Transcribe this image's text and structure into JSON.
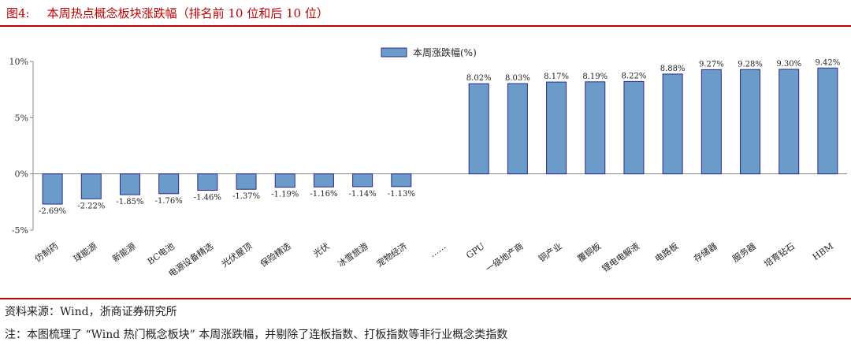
{
  "title": {
    "fig_label": "图4:",
    "text": "本周热点概念板块涨跌幅（排名前 10 位和后 10 位）"
  },
  "source": "资料来源：Wind，浙商证券研究所",
  "note": "注：本图梳理了 “Wind 热门概念板块” 本周涨跌幅，并剔除了连板指数、打板指数等非行业概念类指数",
  "colors": {
    "bar": "#6B9BC8",
    "bar_border": "#2E2A8C",
    "rule": "#C00000"
  },
  "chart_data": {
    "type": "bar",
    "title": "",
    "xlabel": "",
    "ylabel": "",
    "ylim": [
      -5,
      10
    ],
    "yticks": [
      -5,
      0,
      5,
      10
    ],
    "ytick_labels": [
      "-5%",
      "0%",
      "5%",
      "10%"
    ],
    "grid": false,
    "legend": {
      "position": "top-center",
      "entries": [
        "本周涨跌幅(%)"
      ]
    },
    "categories": [
      "仿制药",
      "球能源",
      "新能源",
      "BC电池",
      "电源设备精选",
      "光伏屋顶",
      "保险精选",
      "光伏",
      "冰雪旅游",
      "宠物经济",
      "……",
      "GPU",
      "一级地产商",
      "铜产业",
      "覆铜板",
      "锂电电解液",
      "电路板",
      "存储器",
      "服务器",
      "培育钻石",
      "HBM"
    ],
    "series": [
      {
        "name": "本周涨跌幅(%)",
        "values": [
          -2.69,
          -2.22,
          -1.85,
          -1.76,
          -1.46,
          -1.37,
          -1.19,
          -1.16,
          -1.14,
          -1.13,
          null,
          8.02,
          8.03,
          8.17,
          8.19,
          8.22,
          8.88,
          9.27,
          9.28,
          9.3,
          9.42
        ],
        "labels": [
          "-2.69%",
          "-2.22%",
          "-1.85%",
          "-1.76%",
          "-1.46%",
          "-1.37%",
          "-1.19%",
          "-1.16%",
          "-1.14%",
          "-1.13%",
          "",
          "8.02%",
          "8.03%",
          "8.17%",
          "8.19%",
          "8.22%",
          "8.88%",
          "9.27%",
          "9.28%",
          "9.30%",
          "9.42%"
        ]
      }
    ]
  }
}
